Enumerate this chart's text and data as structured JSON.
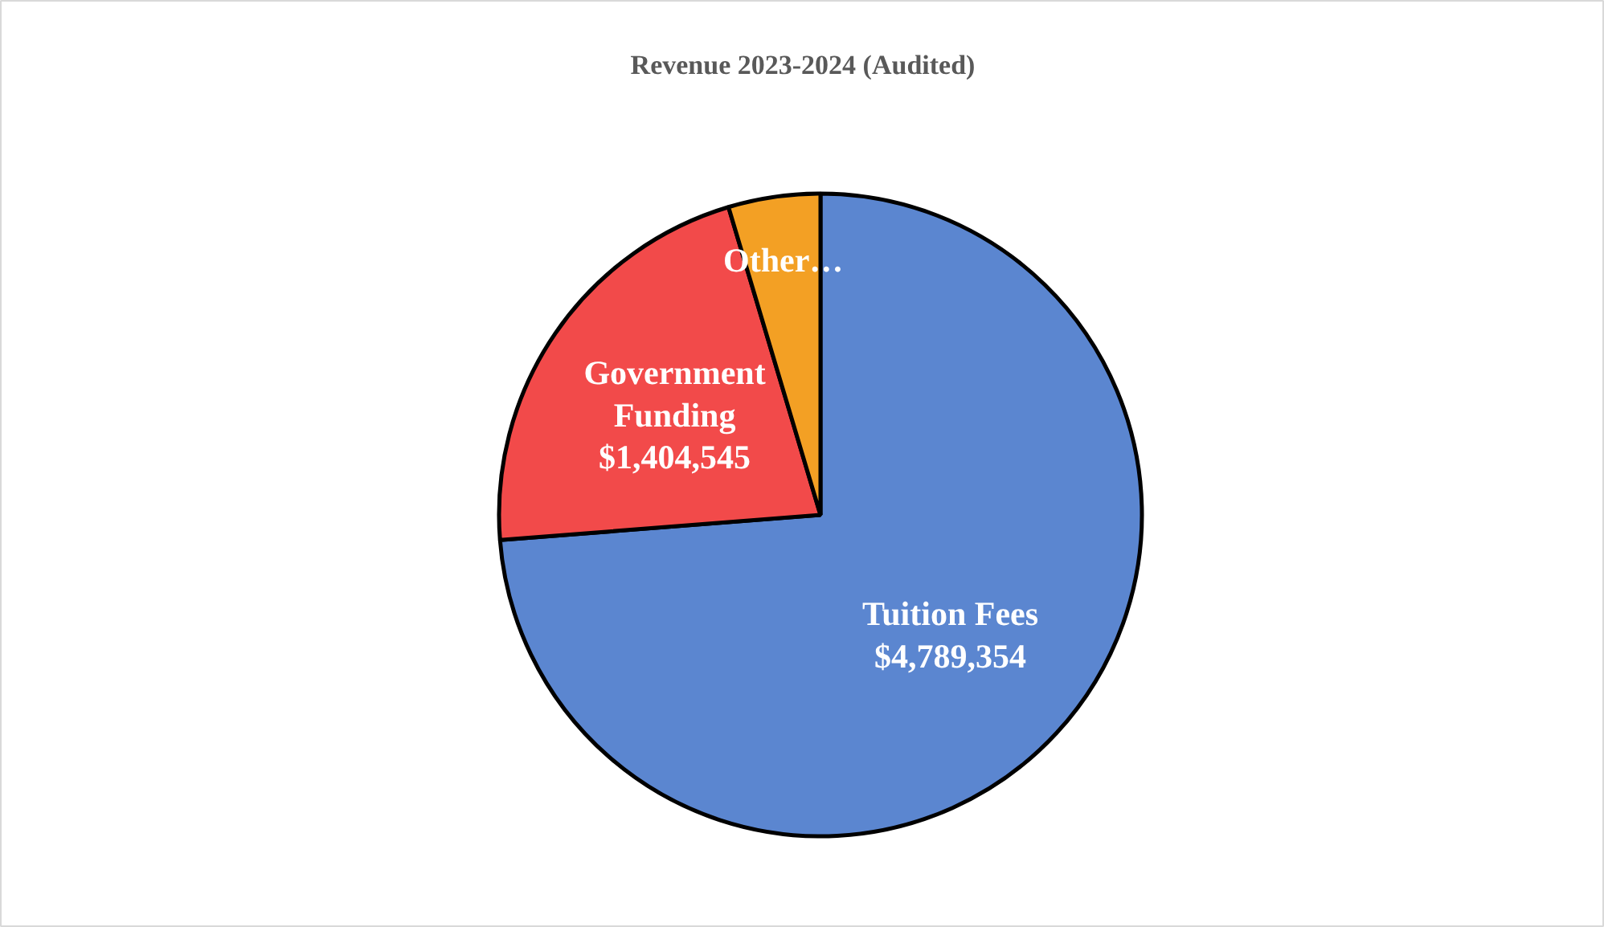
{
  "chart_data": {
    "type": "pie",
    "title": "Revenue 2023-2024 (Audited)",
    "categories": [
      "Tuition Fees",
      "Government Funding",
      "Other…"
    ],
    "values": [
      4789354,
      1404545,
      300000
    ],
    "colors": [
      "#5b86d0",
      "#f24a4a",
      "#f3a024"
    ],
    "value_labels": [
      "$4,789,354",
      "$1,404,545",
      null
    ]
  }
}
